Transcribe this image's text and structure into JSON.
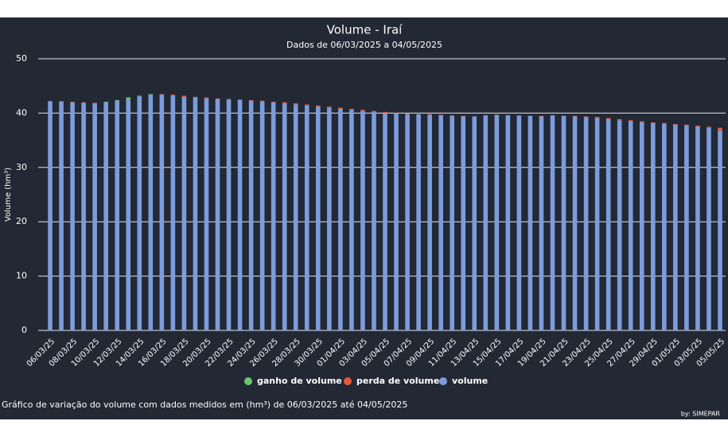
{
  "chart_data": {
    "type": "bar",
    "title": "Volume - Iraí",
    "subtitle": "Dados de 06/03/2025 a 04/05/2025",
    "y_label": "Volume (hm³)",
    "caption": "Gráfico de variação do volume com dados medidos em (hm³) de 06/03/2025 até 04/05/2025",
    "credit": "by: SIMEPAR",
    "stacked": true,
    "grid": true,
    "legend": "bottom",
    "ylim": [
      0,
      50
    ],
    "yticks": [
      0,
      10,
      20,
      30,
      40,
      50
    ],
    "categories": [
      "06/03/25",
      null,
      "08/03/25",
      null,
      "10/03/25",
      null,
      "12/03/25",
      null,
      "14/03/25",
      null,
      "16/03/25",
      null,
      "18/03/25",
      null,
      "20/03/25",
      null,
      "22/03/25",
      null,
      "24/03/25",
      null,
      "26/03/25",
      null,
      "28/03/25",
      null,
      "30/03/25",
      null,
      "01/04/25",
      null,
      "03/04/25",
      null,
      "05/04/25",
      null,
      "07/04/25",
      null,
      "09/04/25",
      null,
      "11/04/25",
      null,
      "13/04/25",
      null,
      "15/04/25",
      null,
      "17/04/25",
      null,
      "19/04/25",
      null,
      "21/04/25",
      null,
      "23/04/25",
      null,
      "25/04/25",
      null,
      "27/04/25",
      null,
      "29/04/25",
      null,
      "01/05/25",
      null,
      "03/05/25",
      null,
      "05/05/25"
    ],
    "series": [
      {
        "name": "volume",
        "color": "#7c9cdc",
        "values": [
          42.2,
          42.1,
          42.0,
          41.9,
          41.8,
          42.0,
          42.3,
          42.5,
          43.1,
          43.4,
          43.4,
          43.2,
          43.0,
          42.9,
          42.7,
          42.6,
          42.5,
          42.4,
          42.3,
          42.1,
          42.0,
          41.8,
          41.6,
          41.4,
          41.2,
          41.0,
          40.8,
          40.6,
          40.4,
          40.2,
          40.0,
          39.9,
          39.8,
          39.8,
          39.7,
          39.6,
          39.5,
          39.4,
          39.4,
          39.5,
          39.6,
          39.6,
          39.5,
          39.5,
          39.4,
          39.5,
          39.5,
          39.4,
          39.3,
          39.1,
          38.9,
          38.7,
          38.5,
          38.3,
          38.2,
          38.0,
          37.9,
          37.7,
          37.5,
          37.3,
          36.8
        ]
      },
      {
        "name": "ganho de volume",
        "color": "#6cc46c",
        "values": [
          0,
          0,
          0,
          0,
          0,
          0.1,
          0.1,
          0.4,
          0.1,
          0.1,
          0,
          0,
          0,
          0,
          0,
          0,
          0,
          0,
          0,
          0,
          0,
          0,
          0,
          0,
          0,
          0,
          0,
          0,
          0,
          0,
          0,
          0,
          0,
          0,
          0,
          0,
          0,
          0,
          0,
          0.1,
          0.1,
          0,
          0,
          0,
          0,
          0.1,
          0,
          0,
          0,
          0,
          0,
          0,
          0,
          0,
          0,
          0,
          0,
          0,
          0,
          0,
          0
        ]
      },
      {
        "name": "perda de volume",
        "color": "#e8583c",
        "values": [
          0,
          0.1,
          0.1,
          0.1,
          0.1,
          0,
          0,
          0,
          0,
          0,
          0.1,
          0.2,
          0.2,
          0.1,
          0.2,
          0.1,
          0.1,
          0.1,
          0.1,
          0.2,
          0.1,
          0.2,
          0.2,
          0.2,
          0.2,
          0.2,
          0.2,
          0.2,
          0.2,
          0.2,
          0.2,
          0.1,
          0.1,
          0,
          0.1,
          0.1,
          0.1,
          0.1,
          0,
          0,
          0,
          0,
          0.1,
          0,
          0.1,
          0,
          0,
          0.1,
          0.1,
          0.2,
          0.2,
          0.2,
          0.2,
          0.2,
          0.1,
          0.2,
          0.1,
          0.2,
          0.2,
          0.2,
          0.5
        ]
      }
    ]
  }
}
